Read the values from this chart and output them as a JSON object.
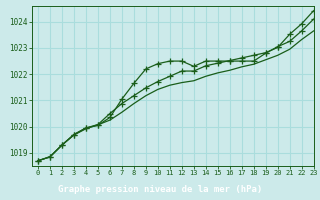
{
  "bg_color": "#cceaea",
  "grid_color": "#aadddd",
  "line_color": "#1a5e1a",
  "marker_color": "#1a5e1a",
  "title": "Graphe pression niveau de la mer (hPa)",
  "title_color": "#1a5e1a",
  "title_bg": "#2a6e2a",
  "xlim": [
    -0.5,
    23
  ],
  "ylim": [
    1018.5,
    1024.6
  ],
  "yticks": [
    1019,
    1020,
    1021,
    1022,
    1023,
    1024
  ],
  "xticks": [
    0,
    1,
    2,
    3,
    4,
    5,
    6,
    7,
    8,
    9,
    10,
    11,
    12,
    13,
    14,
    15,
    16,
    17,
    18,
    19,
    20,
    21,
    22,
    23
  ],
  "line1_x": [
    0,
    1,
    2,
    3,
    4,
    5,
    6,
    7,
    8,
    9,
    10,
    11,
    12,
    13,
    14,
    15,
    16,
    17,
    18,
    19,
    20,
    21,
    22,
    23
  ],
  "line1_y": [
    1018.7,
    1018.85,
    1019.3,
    1019.7,
    1019.95,
    1020.05,
    1020.35,
    1021.05,
    1021.65,
    1022.2,
    1022.4,
    1022.5,
    1022.5,
    1022.3,
    1022.5,
    1022.5,
    1022.5,
    1022.5,
    1022.5,
    1022.8,
    1023.05,
    1023.25,
    1023.65,
    1024.1
  ],
  "line2_x": [
    0,
    1,
    2,
    3,
    4,
    5,
    6,
    7,
    8,
    9,
    10,
    11,
    12,
    13,
    14,
    15,
    16,
    17,
    18,
    19,
    20,
    21,
    22,
    23
  ],
  "line2_y": [
    1018.7,
    1018.85,
    1019.3,
    1019.68,
    1019.92,
    1020.07,
    1020.25,
    1020.55,
    1020.88,
    1021.18,
    1021.42,
    1021.58,
    1021.68,
    1021.75,
    1021.92,
    1022.05,
    1022.15,
    1022.28,
    1022.38,
    1022.55,
    1022.72,
    1022.95,
    1023.32,
    1023.65
  ],
  "line3_x": [
    0,
    1,
    2,
    3,
    4,
    5,
    6,
    7,
    8,
    9,
    10,
    11,
    12,
    13,
    14,
    15,
    16,
    17,
    18,
    19,
    20,
    21,
    22,
    23
  ],
  "line3_y": [
    1018.7,
    1018.85,
    1019.3,
    1019.7,
    1019.95,
    1020.08,
    1020.5,
    1020.88,
    1021.18,
    1021.48,
    1021.72,
    1021.92,
    1022.12,
    1022.12,
    1022.32,
    1022.42,
    1022.52,
    1022.62,
    1022.72,
    1022.82,
    1023.02,
    1023.52,
    1023.92,
    1024.42
  ]
}
